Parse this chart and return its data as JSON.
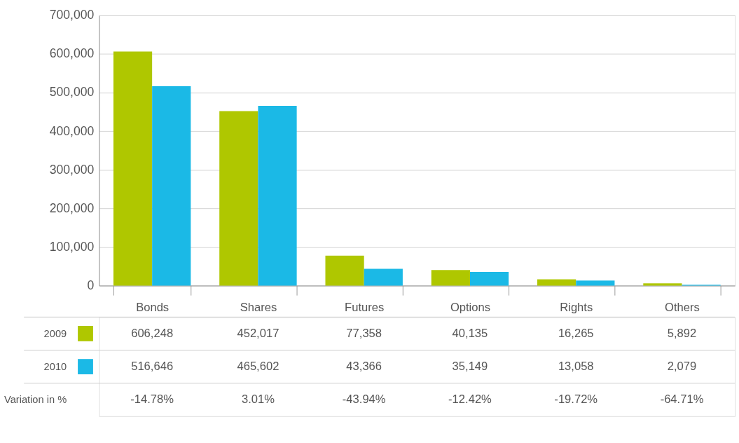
{
  "chart_data": {
    "type": "bar",
    "categories": [
      "Bonds",
      "Shares",
      "Futures",
      "Options",
      "Rights",
      "Others"
    ],
    "series": [
      {
        "name": "2009",
        "color": "#afc700",
        "values": [
          606248,
          452017,
          77358,
          40135,
          16265,
          5892
        ],
        "value_labels": [
          "606,248",
          "452,017",
          "77,358",
          "40,135",
          "16,265",
          "5,892"
        ]
      },
      {
        "name": "2010",
        "color": "#1bb9e6",
        "values": [
          516646,
          465602,
          43366,
          35149,
          13058,
          2079
        ],
        "value_labels": [
          "516,646",
          "465,602",
          "43,366",
          "35,149",
          "13,058",
          "2,079"
        ]
      }
    ],
    "ylim": [
      0,
      700000
    ],
    "yticks": [
      0,
      {
        "value": 100000,
        "label": "100,000"
      },
      {
        "value": 200000,
        "label": "200,000"
      },
      {
        "value": 300000,
        "label": "300,000"
      },
      {
        "value": 400000,
        "label": "400,000"
      },
      {
        "value": 500000,
        "label": "500,000"
      },
      {
        "value": 600000,
        "label": "600,000"
      },
      {
        "value": 700000,
        "label": "700,000"
      }
    ],
    "grid": "y",
    "legend": "bottom",
    "annotations": [
      "Variation in %",
      "-14.78%",
      "3.01%",
      "-43.94%",
      "-12.42%",
      "-19.72%",
      "-64.71%"
    ]
  }
}
